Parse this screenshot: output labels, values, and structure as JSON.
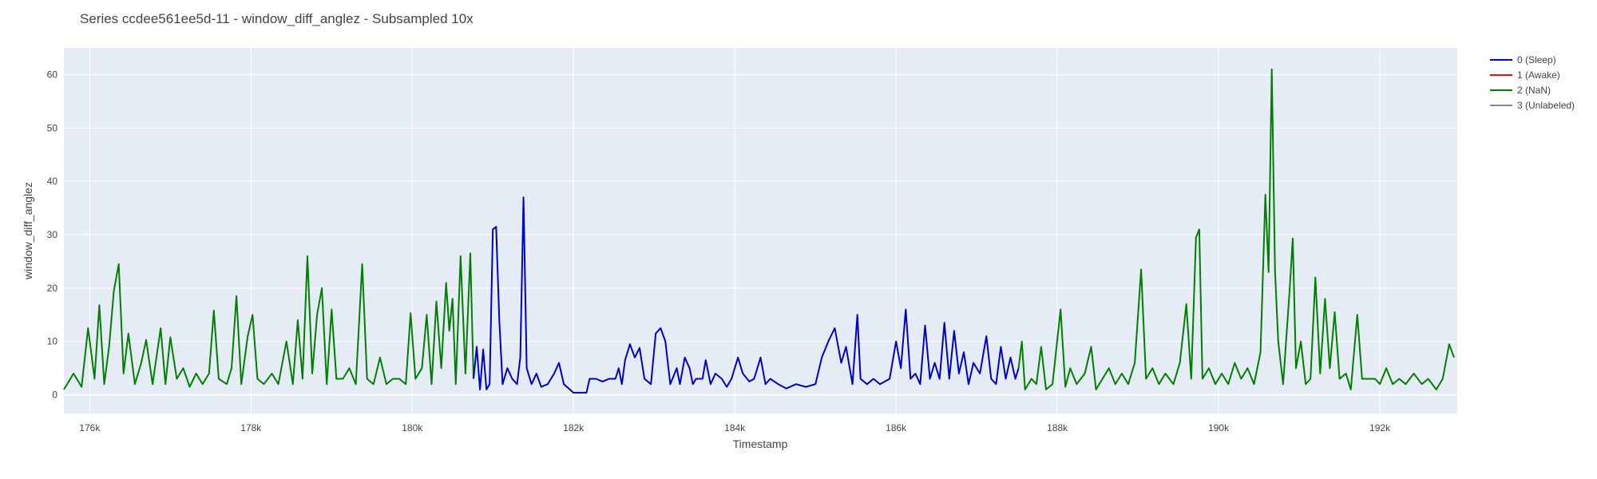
{
  "chart_data": {
    "type": "line",
    "title": "Series ccdee561ee5d-11 - window_diff_anglez - Subsampled 10x",
    "xlabel": "Timestamp",
    "ylabel": "window_diff_anglez",
    "xlim": [
      175680,
      192960
    ],
    "ylim": [
      -3.5,
      65
    ],
    "x_ticks": [
      176000,
      178000,
      180000,
      182000,
      184000,
      186000,
      188000,
      190000,
      192000
    ],
    "x_tick_labels": [
      "176k",
      "178k",
      "180k",
      "182k",
      "184k",
      "186k",
      "188k",
      "190k",
      "192k"
    ],
    "y_ticks": [
      0,
      10,
      20,
      30,
      40,
      50,
      60
    ],
    "y_tick_labels": [
      "0",
      "10",
      "20",
      "30",
      "40",
      "50",
      "60"
    ],
    "grid": true,
    "legend_position": "top-right",
    "plot_background": "#e5ecf6",
    "grid_color": "#ffffff",
    "legend": [
      {
        "label": "0 (Sleep)",
        "color": "#0000cc"
      },
      {
        "label": "1 (Awake)",
        "color": "#ee1111"
      },
      {
        "label": "2 (NaN)",
        "color": "#008000"
      },
      {
        "label": "3 (Unlabeled)",
        "color": "#888888"
      }
    ],
    "series": [
      {
        "name": "2 (NaN)",
        "color": "#008000",
        "points": [
          [
            175680,
            1
          ],
          [
            175800,
            4
          ],
          [
            175900,
            1.5
          ],
          [
            175980,
            12.5
          ],
          [
            176060,
            3
          ],
          [
            176120,
            16.8
          ],
          [
            176180,
            2
          ],
          [
            176240,
            9
          ],
          [
            176300,
            19.5
          ],
          [
            176360,
            24.5
          ],
          [
            176420,
            4
          ],
          [
            176480,
            11.5
          ],
          [
            176560,
            2
          ],
          [
            176640,
            6
          ],
          [
            176700,
            10.3
          ],
          [
            176780,
            2
          ],
          [
            176880,
            12.5
          ],
          [
            176940,
            2
          ],
          [
            177000,
            10.8
          ],
          [
            177080,
            3
          ],
          [
            177160,
            5
          ],
          [
            177240,
            1.5
          ],
          [
            177320,
            4
          ],
          [
            177400,
            2
          ],
          [
            177480,
            4
          ],
          [
            177540,
            15.8
          ],
          [
            177600,
            3
          ],
          [
            177700,
            2
          ],
          [
            177760,
            5
          ],
          [
            177820,
            18.5
          ],
          [
            177880,
            2
          ],
          [
            177960,
            11
          ],
          [
            178020,
            15
          ],
          [
            178080,
            3
          ],
          [
            178160,
            2
          ],
          [
            178260,
            4
          ],
          [
            178340,
            2
          ],
          [
            178440,
            10
          ],
          [
            178520,
            2
          ],
          [
            178580,
            14
          ],
          [
            178640,
            3
          ],
          [
            178700,
            26
          ],
          [
            178760,
            4
          ],
          [
            178820,
            15
          ],
          [
            178880,
            20
          ],
          [
            178940,
            2
          ],
          [
            179000,
            16
          ],
          [
            179060,
            3
          ],
          [
            179140,
            3
          ],
          [
            179220,
            5
          ],
          [
            179300,
            2
          ],
          [
            179380,
            24.5
          ],
          [
            179440,
            3
          ],
          [
            179520,
            2
          ],
          [
            179600,
            7
          ],
          [
            179680,
            2
          ],
          [
            179760,
            3
          ],
          [
            179840,
            3
          ],
          [
            179920,
            2
          ],
          [
            179980,
            15.3
          ],
          [
            180040,
            3
          ],
          [
            180120,
            5
          ],
          [
            180180,
            15
          ],
          [
            180240,
            2
          ],
          [
            180300,
            17.5
          ],
          [
            180360,
            5
          ],
          [
            180420,
            21
          ],
          [
            180460,
            12
          ],
          [
            180500,
            18
          ],
          [
            180540,
            2
          ],
          [
            180600,
            26
          ],
          [
            180660,
            4
          ],
          [
            180720,
            26.5
          ],
          [
            180760,
            3
          ]
        ]
      },
      {
        "name": "0 (Sleep)",
        "color": "#0000cc",
        "points": [
          [
            180760,
            3
          ],
          [
            180800,
            9
          ],
          [
            180840,
            1
          ],
          [
            180880,
            8.5
          ],
          [
            180920,
            1
          ],
          [
            180960,
            2
          ],
          [
            181000,
            31
          ],
          [
            181040,
            31.5
          ],
          [
            181080,
            14
          ],
          [
            181120,
            2
          ],
          [
            181180,
            5
          ],
          [
            181240,
            3
          ],
          [
            181300,
            2
          ],
          [
            181340,
            7
          ],
          [
            181380,
            37
          ],
          [
            181420,
            5
          ],
          [
            181480,
            2
          ],
          [
            181540,
            4
          ],
          [
            181600,
            1.5
          ],
          [
            181680,
            2
          ],
          [
            181760,
            4
          ],
          [
            181820,
            6
          ],
          [
            181880,
            2
          ],
          [
            182000,
            0.4
          ],
          [
            182160,
            0.4
          ],
          [
            182200,
            3
          ],
          [
            182280,
            3
          ],
          [
            182360,
            2.5
          ],
          [
            182440,
            3
          ],
          [
            182520,
            3
          ],
          [
            182560,
            5
          ],
          [
            182600,
            2
          ],
          [
            182640,
            6.5
          ],
          [
            182700,
            9.5
          ],
          [
            182760,
            7
          ],
          [
            182820,
            8.8
          ],
          [
            182880,
            3
          ],
          [
            182960,
            2
          ],
          [
            183020,
            11.5
          ],
          [
            183080,
            12.5
          ],
          [
            183140,
            10
          ],
          [
            183200,
            2
          ],
          [
            183280,
            5
          ],
          [
            183320,
            2
          ],
          [
            183380,
            7
          ],
          [
            183440,
            5
          ],
          [
            183480,
            2
          ],
          [
            183520,
            3
          ],
          [
            183600,
            3
          ],
          [
            183640,
            6.5
          ],
          [
            183700,
            2
          ],
          [
            183760,
            4
          ],
          [
            183840,
            3
          ],
          [
            183900,
            1.5
          ],
          [
            183960,
            3
          ],
          [
            184040,
            7
          ],
          [
            184100,
            4
          ],
          [
            184180,
            2.5
          ],
          [
            184240,
            3
          ],
          [
            184320,
            7
          ],
          [
            184380,
            2
          ],
          [
            184440,
            3
          ],
          [
            184540,
            2
          ],
          [
            184640,
            1.2
          ],
          [
            184760,
            2
          ],
          [
            184880,
            1.5
          ],
          [
            185000,
            2
          ],
          [
            185080,
            7
          ],
          [
            185160,
            10
          ],
          [
            185240,
            12.5
          ],
          [
            185320,
            6
          ],
          [
            185380,
            9
          ],
          [
            185460,
            2
          ],
          [
            185520,
            15
          ],
          [
            185560,
            3
          ],
          [
            185640,
            2
          ],
          [
            185720,
            3
          ],
          [
            185800,
            2
          ],
          [
            185920,
            3
          ],
          [
            186000,
            10
          ],
          [
            186060,
            5
          ],
          [
            186120,
            16
          ],
          [
            186180,
            3
          ],
          [
            186240,
            4
          ],
          [
            186300,
            2
          ],
          [
            186360,
            13
          ],
          [
            186420,
            3
          ],
          [
            186480,
            6
          ],
          [
            186540,
            3
          ],
          [
            186600,
            13.5
          ],
          [
            186660,
            3
          ],
          [
            186720,
            12
          ],
          [
            186780,
            4
          ],
          [
            186840,
            8
          ],
          [
            186900,
            2
          ],
          [
            186960,
            6
          ],
          [
            187040,
            4
          ],
          [
            187120,
            11
          ],
          [
            187180,
            3
          ],
          [
            187240,
            2
          ],
          [
            187300,
            9
          ],
          [
            187360,
            3
          ],
          [
            187420,
            7
          ],
          [
            187480,
            3
          ],
          [
            187520,
            5
          ]
        ]
      },
      {
        "name": "2 (NaN)",
        "color": "#008000",
        "points": [
          [
            187520,
            5
          ],
          [
            187560,
            10
          ],
          [
            187600,
            1
          ],
          [
            187680,
            3
          ],
          [
            187740,
            2
          ],
          [
            187800,
            9
          ],
          [
            187860,
            1
          ],
          [
            187940,
            2
          ],
          [
            188040,
            16
          ],
          [
            188100,
            1.5
          ],
          [
            188160,
            5
          ],
          [
            188240,
            2
          ],
          [
            188340,
            4
          ],
          [
            188420,
            9
          ],
          [
            188480,
            1
          ],
          [
            188560,
            3
          ],
          [
            188640,
            5
          ],
          [
            188720,
            2
          ],
          [
            188800,
            4
          ],
          [
            188880,
            2
          ],
          [
            188960,
            6
          ],
          [
            189040,
            23.5
          ],
          [
            189100,
            3
          ],
          [
            189180,
            5
          ],
          [
            189260,
            2
          ],
          [
            189340,
            4
          ],
          [
            189440,
            2
          ],
          [
            189520,
            6
          ],
          [
            189600,
            17
          ],
          [
            189660,
            3
          ],
          [
            189720,
            29.5
          ],
          [
            189760,
            31
          ],
          [
            189800,
            3
          ],
          [
            189880,
            5
          ],
          [
            189960,
            2
          ],
          [
            190040,
            4
          ],
          [
            190120,
            2
          ],
          [
            190200,
            6
          ],
          [
            190280,
            3
          ],
          [
            190360,
            5
          ],
          [
            190440,
            2
          ],
          [
            190520,
            8
          ],
          [
            190580,
            37.5
          ],
          [
            190620,
            23
          ],
          [
            190660,
            61
          ],
          [
            190700,
            23
          ],
          [
            190740,
            10
          ],
          [
            190800,
            2
          ],
          [
            190880,
            19.5
          ],
          [
            190920,
            29.3
          ],
          [
            190960,
            5
          ],
          [
            191020,
            10
          ],
          [
            191080,
            2
          ],
          [
            191140,
            3
          ],
          [
            191200,
            22
          ],
          [
            191260,
            4
          ],
          [
            191320,
            18
          ],
          [
            191380,
            5
          ],
          [
            191440,
            15.5
          ],
          [
            191500,
            3
          ],
          [
            191580,
            4
          ],
          [
            191640,
            1
          ],
          [
            191720,
            15
          ],
          [
            191780,
            3
          ],
          [
            191860,
            3
          ],
          [
            191940,
            3
          ],
          [
            192000,
            2
          ],
          [
            192080,
            5
          ],
          [
            192160,
            2
          ],
          [
            192240,
            3
          ],
          [
            192320,
            2
          ],
          [
            192420,
            4
          ],
          [
            192520,
            2
          ],
          [
            192600,
            3
          ],
          [
            192700,
            1
          ],
          [
            192780,
            3
          ],
          [
            192860,
            9.5
          ],
          [
            192920,
            7
          ]
        ]
      }
    ]
  }
}
